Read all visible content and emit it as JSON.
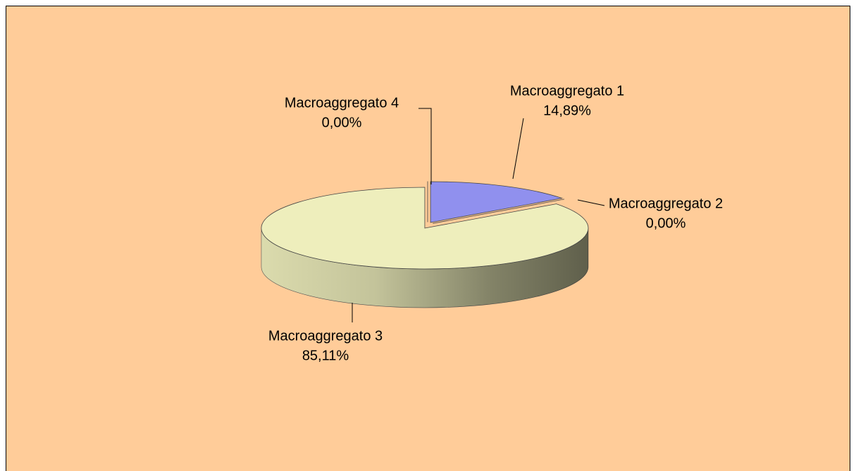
{
  "chart_data": {
    "type": "pie",
    "categories": [
      "Macroaggregato 1",
      "Macroaggregato 2",
      "Macroaggregato 3",
      "Macroaggregato 4"
    ],
    "values": [
      14.89,
      0,
      85.11,
      0
    ],
    "value_labels": [
      "14,89%",
      "0,00%",
      "85,11%",
      "0,00%"
    ],
    "colors": [
      "#9090ee",
      "#4a1432",
      "#eeeebc",
      "#ffffff"
    ],
    "background": "#ffcc99"
  }
}
